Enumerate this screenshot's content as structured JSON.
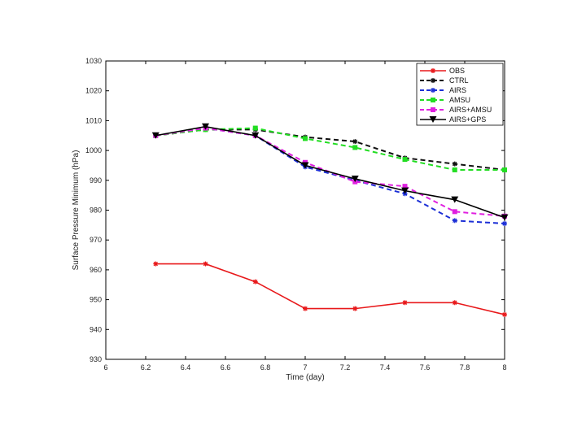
{
  "chart_data": {
    "type": "line",
    "title": "",
    "xlabel": "Time (day)",
    "ylabel": "Surface Pressure Minimum (hPa)",
    "xlim": [
      6,
      8
    ],
    "ylim": [
      930,
      1030
    ],
    "xticks": [
      6,
      6.2,
      6.4,
      6.6,
      6.8,
      7,
      7.2,
      7.4,
      7.6,
      7.8,
      8
    ],
    "xtick_labels": [
      "6",
      "6.2",
      "6.4",
      "6.6",
      "6.8",
      "7",
      "7.2",
      "7.4",
      "7.6",
      "7.8",
      "8"
    ],
    "yticks": [
      930,
      940,
      950,
      960,
      970,
      980,
      990,
      1000,
      1010,
      1020,
      1030
    ],
    "ytick_labels": [
      "930",
      "940",
      "950",
      "960",
      "970",
      "980",
      "990",
      "1000",
      "1010",
      "1020",
      "1030"
    ],
    "grid": false,
    "legend_position": "top-right",
    "series": [
      {
        "name": "OBS",
        "color": "#e8191b",
        "dash": "solid",
        "marker": "star",
        "x": [
          6.25,
          6.5,
          6.75,
          7,
          7.25,
          7.5,
          7.75,
          8
        ],
        "y": [
          962,
          962,
          956,
          947,
          947,
          949,
          949,
          945
        ]
      },
      {
        "name": "CTRL",
        "color": "#111111",
        "dash": "dashed",
        "marker": "star",
        "x": [
          6.25,
          6.5,
          6.75,
          7,
          7.25,
          7.5,
          7.75,
          8
        ],
        "y": [
          1005,
          1007,
          1007,
          1004.5,
          1003,
          997.5,
          995.5,
          993.5
        ]
      },
      {
        "name": "AIRS",
        "color": "#1c2fd6",
        "dash": "dashed",
        "marker": "star",
        "x": [
          6.25,
          6.5,
          6.75,
          7,
          7.25,
          7.5,
          7.75,
          8
        ],
        "y": [
          1005,
          1007.5,
          1005,
          994.5,
          990,
          985.5,
          976.5,
          975.5
        ]
      },
      {
        "name": "AMSU",
        "color": "#22dd22",
        "dash": "dashed",
        "marker": "square",
        "x": [
          6.25,
          6.5,
          6.75,
          7,
          7.25,
          7.5,
          7.75,
          8
        ],
        "y": [
          1005,
          1007,
          1007.5,
          1004,
          1001,
          997,
          993.5,
          993.5
        ]
      },
      {
        "name": "AIRS+AMSU",
        "color": "#e020e0",
        "dash": "dashed",
        "marker": "square",
        "x": [
          6.25,
          6.5,
          6.75,
          7,
          7.25,
          7.5,
          7.75,
          8
        ],
        "y": [
          1005,
          1007.5,
          1005,
          996,
          989.5,
          988,
          979.5,
          978
        ]
      },
      {
        "name": "AIRS+GPS",
        "color": "#000000",
        "dash": "solid",
        "marker": "triangle",
        "x": [
          6.25,
          6.5,
          6.75,
          7,
          7.25,
          7.5,
          7.75,
          8
        ],
        "y": [
          1005,
          1008,
          1005,
          995,
          990.5,
          986.5,
          983.5,
          977.5
        ]
      }
    ]
  }
}
